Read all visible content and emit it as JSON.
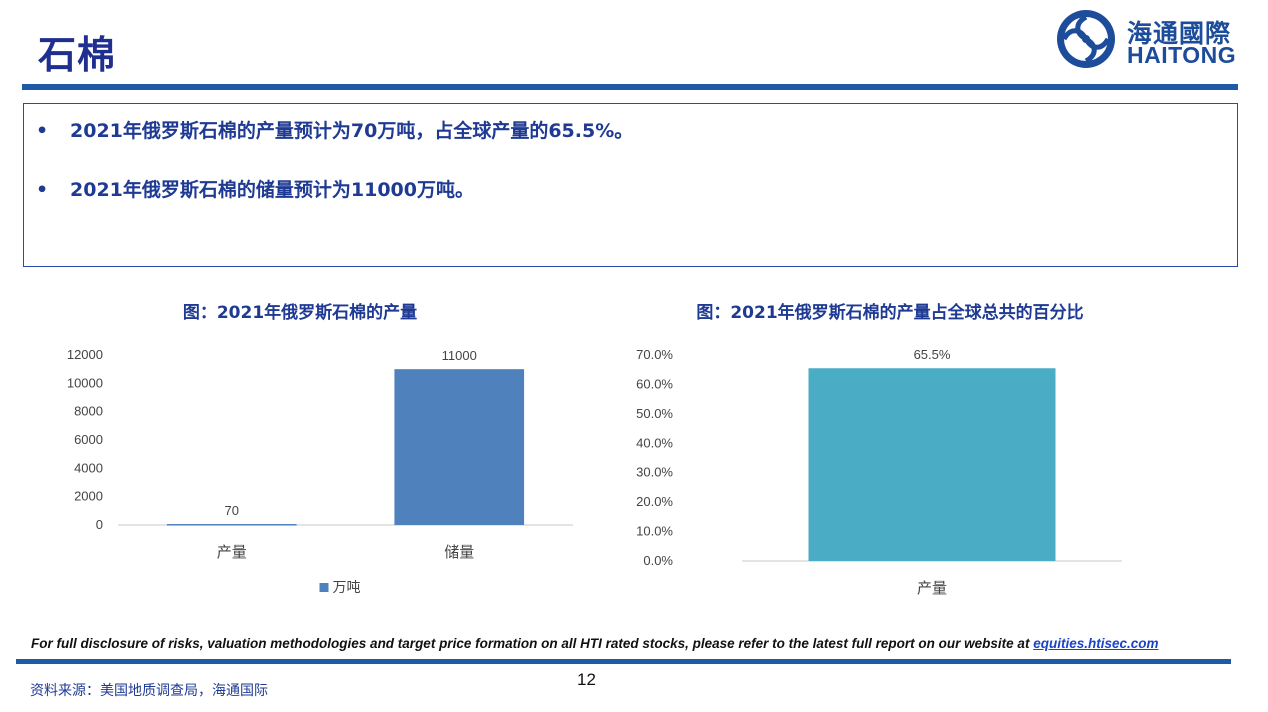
{
  "header": {
    "title": "石棉",
    "logo_cn": "海通國際",
    "logo_en": "HAITONG"
  },
  "bullets": [
    "2021年俄罗斯石棉的产量预计为70万吨，占全球产量的65.5%。",
    "2021年俄罗斯石棉的储量预计为11000万吨。"
  ],
  "bullet_glyph": "•",
  "colors": {
    "title": "#1f2f8f",
    "rule": "#1e5aa6",
    "bar_left": "#4f81bd",
    "bar_right": "#4bacc6"
  },
  "chart_data": [
    {
      "type": "bar",
      "title": "图：2021年俄罗斯石棉的产量",
      "categories": [
        "产量",
        "储量"
      ],
      "series": [
        {
          "name": "万吨",
          "values": [
            70,
            11000
          ]
        }
      ],
      "data_labels": [
        "70",
        "11000"
      ],
      "ylim": [
        0,
        12000
      ],
      "yticks": [
        "0",
        "2000",
        "4000",
        "6000",
        "8000",
        "10000",
        "12000"
      ],
      "legend": "bottom",
      "grid": false
    },
    {
      "type": "bar",
      "title": "图：2021年俄罗斯石棉的产量占全球总共的百分比",
      "categories": [
        "产量"
      ],
      "series": [
        {
          "values": [
            65.5
          ]
        }
      ],
      "data_labels": [
        "65.5%"
      ],
      "ylim": [
        0,
        70
      ],
      "yticks": [
        "0.0%",
        "10.0%",
        "20.0%",
        "30.0%",
        "40.0%",
        "50.0%",
        "60.0%",
        "70.0%"
      ],
      "legend": "none",
      "grid": false
    }
  ],
  "footer": {
    "disclaimer": "For full disclosure of risks, valuation methodologies and target price formation on all HTI rated stocks, please refer to the latest full report on our website at ",
    "link_text": "equities.htisec.com",
    "page_number": "12",
    "source": "资料来源：美国地质调查局，海通国际"
  }
}
